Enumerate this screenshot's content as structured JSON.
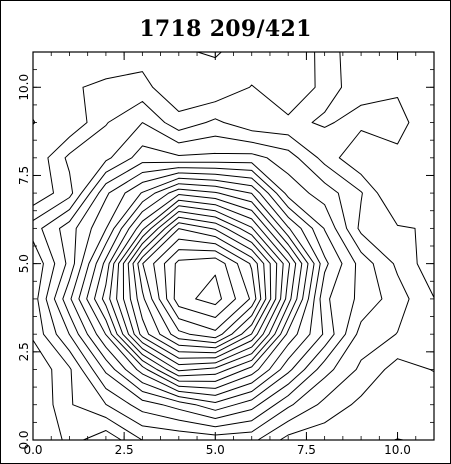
{
  "chart_data": {
    "type": "contour",
    "title": "1718 209/421",
    "xlabel": "",
    "ylabel": "",
    "xlim": [
      0.0,
      11.0
    ],
    "ylim": [
      0.0,
      11.0
    ],
    "x_ticks": [
      "0.0",
      "2.5",
      "5.0",
      "7.5",
      "10.0"
    ],
    "y_ticks": [
      "0.0",
      "2.5",
      "5.0",
      "7.5",
      "10.0"
    ],
    "grid": false,
    "peak": {
      "x": 4.6,
      "y": 4.4
    },
    "contour_level_count": 24
  }
}
